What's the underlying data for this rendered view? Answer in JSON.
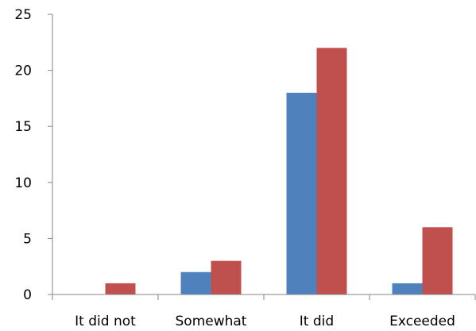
{
  "chart_data": {
    "type": "bar",
    "categories": [
      "It did not",
      "Somewhat",
      "It did",
      "Exceeded"
    ],
    "series": [
      {
        "values": [
          0,
          2,
          18,
          1
        ],
        "color": "#4f81bd"
      },
      {
        "values": [
          1,
          3,
          22,
          6
        ],
        "color": "#c0504d"
      }
    ],
    "yticks": [
      "0",
      "5",
      "10",
      "15",
      "20",
      "25"
    ],
    "ylim": [
      0,
      25
    ],
    "title": "",
    "xlabel": "",
    "ylabel": "",
    "grid": false,
    "legend": "none"
  }
}
